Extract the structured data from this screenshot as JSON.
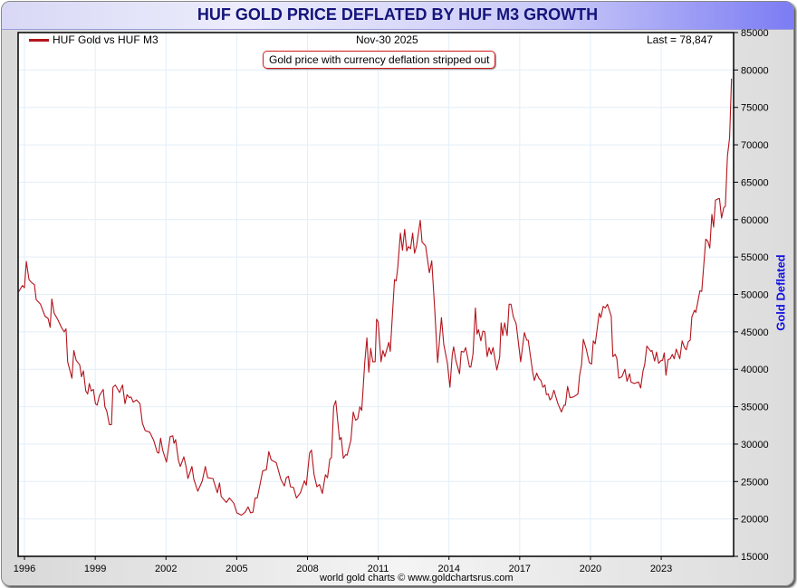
{
  "title": "HUF GOLD PRICE DEFLATED BY HUF M3 GROWTH",
  "legend": {
    "label": "HUF Gold vs HUF M3",
    "color": "#b4141c"
  },
  "date_label": "Nov-30  2025",
  "last_label": "Last = 78,847",
  "annotation": "Gold price with currency deflation stripped out",
  "footer": "world gold charts © www.goldchartsrus.com",
  "chart_data": {
    "type": "line",
    "title": "HUF GOLD PRICE DEFLATED BY HUF M3 GROWTH",
    "xlabel": "",
    "ylabel": "Gold Deflated",
    "xlim": [
      1995.73,
      2026.07
    ],
    "ylim": [
      15000,
      85000
    ],
    "x_ticks": [
      1996,
      1999,
      2002,
      2005,
      2008,
      2011,
      2014,
      2017,
      2020,
      2023
    ],
    "y_ticks": [
      15000,
      20000,
      25000,
      30000,
      35000,
      40000,
      45000,
      50000,
      55000,
      60000,
      65000,
      70000,
      75000,
      80000,
      85000
    ],
    "grid": true,
    "legend_position": "top-left",
    "last_value": 78847,
    "series": [
      {
        "name": "HUF Gold vs HUF M3",
        "color": "#b4141c",
        "points": [
          [
            1995.76,
            50400
          ],
          [
            1995.91,
            51200
          ],
          [
            1996.0,
            50900
          ],
          [
            1996.08,
            54400
          ],
          [
            1996.19,
            52000
          ],
          [
            1996.3,
            51600
          ],
          [
            1996.42,
            51300
          ],
          [
            1996.5,
            49300
          ],
          [
            1996.68,
            48700
          ],
          [
            1996.87,
            47100
          ],
          [
            1997.0,
            46800
          ],
          [
            1997.09,
            45600
          ],
          [
            1997.16,
            49400
          ],
          [
            1997.26,
            47500
          ],
          [
            1997.42,
            46600
          ],
          [
            1997.55,
            45700
          ],
          [
            1997.68,
            45000
          ],
          [
            1997.76,
            45400
          ],
          [
            1997.83,
            41000
          ],
          [
            1998.01,
            38800
          ],
          [
            1998.09,
            42500
          ],
          [
            1998.19,
            41200
          ],
          [
            1998.34,
            40600
          ],
          [
            1998.42,
            39000
          ],
          [
            1998.5,
            39800
          ],
          [
            1998.6,
            37100
          ],
          [
            1998.68,
            36700
          ],
          [
            1998.75,
            38100
          ],
          [
            1998.83,
            37100
          ],
          [
            1998.92,
            37300
          ],
          [
            1999.01,
            35400
          ],
          [
            1999.08,
            35200
          ],
          [
            1999.18,
            36500
          ],
          [
            1999.34,
            37300
          ],
          [
            1999.41,
            35000
          ],
          [
            1999.49,
            34400
          ],
          [
            1999.6,
            32600
          ],
          [
            1999.69,
            32600
          ],
          [
            1999.75,
            37600
          ],
          [
            1999.85,
            37900
          ],
          [
            2000.03,
            36900
          ],
          [
            2000.16,
            37900
          ],
          [
            2000.26,
            35400
          ],
          [
            2000.35,
            36600
          ],
          [
            2000.45,
            36200
          ],
          [
            2000.52,
            36300
          ],
          [
            2000.61,
            35600
          ],
          [
            2000.75,
            35900
          ],
          [
            2000.9,
            35400
          ],
          [
            2001.0,
            32800
          ],
          [
            2001.12,
            31800
          ],
          [
            2001.31,
            31600
          ],
          [
            2001.48,
            30500
          ],
          [
            2001.63,
            28900
          ],
          [
            2001.7,
            28800
          ],
          [
            2001.77,
            30800
          ],
          [
            2001.86,
            29200
          ],
          [
            2002.02,
            27600
          ],
          [
            2002.18,
            31000
          ],
          [
            2002.29,
            31100
          ],
          [
            2002.34,
            30100
          ],
          [
            2002.41,
            30600
          ],
          [
            2002.53,
            27800
          ],
          [
            2002.61,
            27000
          ],
          [
            2002.76,
            28300
          ],
          [
            2002.85,
            27000
          ],
          [
            2002.93,
            25400
          ],
          [
            2003.1,
            27000
          ],
          [
            2003.18,
            25300
          ],
          [
            2003.35,
            23700
          ],
          [
            2003.54,
            25100
          ],
          [
            2003.67,
            27000
          ],
          [
            2003.77,
            25500
          ],
          [
            2003.99,
            25400
          ],
          [
            2004.18,
            23500
          ],
          [
            2004.27,
            24800
          ],
          [
            2004.34,
            23000
          ],
          [
            2004.56,
            22200
          ],
          [
            2004.69,
            22800
          ],
          [
            2004.88,
            22100
          ],
          [
            2005.01,
            20800
          ],
          [
            2005.2,
            20500
          ],
          [
            2005.36,
            20900
          ],
          [
            2005.48,
            21600
          ],
          [
            2005.59,
            20800
          ],
          [
            2005.69,
            20900
          ],
          [
            2005.78,
            22800
          ],
          [
            2005.87,
            22800
          ],
          [
            2005.97,
            24300
          ],
          [
            2006.1,
            26400
          ],
          [
            2006.26,
            26600
          ],
          [
            2006.36,
            29000
          ],
          [
            2006.46,
            27900
          ],
          [
            2006.68,
            27500
          ],
          [
            2006.87,
            25300
          ],
          [
            2007.02,
            24400
          ],
          [
            2007.1,
            25500
          ],
          [
            2007.19,
            25700
          ],
          [
            2007.28,
            24300
          ],
          [
            2007.41,
            24200
          ],
          [
            2007.53,
            22800
          ],
          [
            2007.7,
            23500
          ],
          [
            2007.87,
            25100
          ],
          [
            2007.95,
            24500
          ],
          [
            2008.09,
            28800
          ],
          [
            2008.17,
            29200
          ],
          [
            2008.28,
            25900
          ],
          [
            2008.4,
            24300
          ],
          [
            2008.51,
            24600
          ],
          [
            2008.63,
            23400
          ],
          [
            2008.76,
            25900
          ],
          [
            2008.85,
            25500
          ],
          [
            2008.95,
            28000
          ],
          [
            2009.02,
            28200
          ],
          [
            2009.11,
            35000
          ],
          [
            2009.2,
            35800
          ],
          [
            2009.36,
            30600
          ],
          [
            2009.43,
            30900
          ],
          [
            2009.52,
            28100
          ],
          [
            2009.62,
            28600
          ],
          [
            2009.68,
            28500
          ],
          [
            2009.84,
            30500
          ],
          [
            2009.94,
            34300
          ],
          [
            2010.04,
            33200
          ],
          [
            2010.13,
            33400
          ],
          [
            2010.22,
            35000
          ],
          [
            2010.3,
            34500
          ],
          [
            2010.43,
            41000
          ],
          [
            2010.52,
            44200
          ],
          [
            2010.6,
            39600
          ],
          [
            2010.68,
            42800
          ],
          [
            2010.77,
            41000
          ],
          [
            2010.87,
            41000
          ],
          [
            2010.93,
            46700
          ],
          [
            2011.0,
            46300
          ],
          [
            2011.12,
            41000
          ],
          [
            2011.2,
            42500
          ],
          [
            2011.28,
            41700
          ],
          [
            2011.45,
            43600
          ],
          [
            2011.51,
            42400
          ],
          [
            2011.69,
            52000
          ],
          [
            2011.76,
            51800
          ],
          [
            2011.83,
            53600
          ],
          [
            2011.94,
            58200
          ],
          [
            2012.03,
            55900
          ],
          [
            2012.12,
            58700
          ],
          [
            2012.21,
            55800
          ],
          [
            2012.28,
            56400
          ],
          [
            2012.37,
            56100
          ],
          [
            2012.46,
            58200
          ],
          [
            2012.54,
            55500
          ],
          [
            2012.63,
            56500
          ],
          [
            2012.78,
            59900
          ],
          [
            2012.86,
            57000
          ],
          [
            2013.01,
            56500
          ],
          [
            2013.17,
            52900
          ],
          [
            2013.27,
            54500
          ],
          [
            2013.4,
            47800
          ],
          [
            2013.52,
            40900
          ],
          [
            2013.68,
            46900
          ],
          [
            2013.78,
            43300
          ],
          [
            2013.93,
            40900
          ],
          [
            2014.04,
            37600
          ],
          [
            2014.14,
            42000
          ],
          [
            2014.2,
            43000
          ],
          [
            2014.29,
            41200
          ],
          [
            2014.45,
            39400
          ],
          [
            2014.52,
            42400
          ],
          [
            2014.63,
            42300
          ],
          [
            2014.71,
            42900
          ],
          [
            2014.87,
            40300
          ],
          [
            2014.93,
            40300
          ],
          [
            2015.02,
            42100
          ],
          [
            2015.12,
            48200
          ],
          [
            2015.19,
            44700
          ],
          [
            2015.25,
            45300
          ],
          [
            2015.35,
            43800
          ],
          [
            2015.44,
            45100
          ],
          [
            2015.52,
            45000
          ],
          [
            2015.62,
            41700
          ],
          [
            2015.7,
            42900
          ],
          [
            2015.79,
            42000
          ],
          [
            2015.87,
            42900
          ],
          [
            2016.03,
            39900
          ],
          [
            2016.15,
            41600
          ],
          [
            2016.21,
            46200
          ],
          [
            2016.28,
            44500
          ],
          [
            2016.36,
            46200
          ],
          [
            2016.47,
            44500
          ],
          [
            2016.55,
            48700
          ],
          [
            2016.63,
            48700
          ],
          [
            2016.73,
            47000
          ],
          [
            2016.85,
            46100
          ],
          [
            2017.04,
            41000
          ],
          [
            2017.2,
            44900
          ],
          [
            2017.3,
            43900
          ],
          [
            2017.36,
            43900
          ],
          [
            2017.55,
            39600
          ],
          [
            2017.62,
            38500
          ],
          [
            2017.72,
            39500
          ],
          [
            2017.81,
            38800
          ],
          [
            2017.9,
            38500
          ],
          [
            2017.98,
            37600
          ],
          [
            2018.07,
            37900
          ],
          [
            2018.13,
            36600
          ],
          [
            2018.21,
            36700
          ],
          [
            2018.28,
            35900
          ],
          [
            2018.36,
            36200
          ],
          [
            2018.45,
            37200
          ],
          [
            2018.62,
            35400
          ],
          [
            2018.77,
            34300
          ],
          [
            2018.88,
            35200
          ],
          [
            2018.94,
            35200
          ],
          [
            2019.03,
            37700
          ],
          [
            2019.13,
            36200
          ],
          [
            2019.28,
            36300
          ],
          [
            2019.47,
            36700
          ],
          [
            2019.54,
            39200
          ],
          [
            2019.62,
            40600
          ],
          [
            2019.7,
            44000
          ],
          [
            2019.82,
            42700
          ],
          [
            2019.95,
            40900
          ],
          [
            2020.05,
            40700
          ],
          [
            2020.12,
            43800
          ],
          [
            2020.2,
            43400
          ],
          [
            2020.37,
            47500
          ],
          [
            2020.44,
            46900
          ],
          [
            2020.54,
            48400
          ],
          [
            2020.63,
            48200
          ],
          [
            2020.72,
            48700
          ],
          [
            2020.88,
            47100
          ],
          [
            2020.95,
            41700
          ],
          [
            2021.05,
            42000
          ],
          [
            2021.12,
            41400
          ],
          [
            2021.2,
            38800
          ],
          [
            2021.33,
            39000
          ],
          [
            2021.46,
            40000
          ],
          [
            2021.55,
            38400
          ],
          [
            2021.66,
            39400
          ],
          [
            2021.72,
            38300
          ],
          [
            2021.85,
            38100
          ],
          [
            2022.04,
            38300
          ],
          [
            2022.13,
            37500
          ],
          [
            2022.23,
            39800
          ],
          [
            2022.3,
            40600
          ],
          [
            2022.39,
            43100
          ],
          [
            2022.56,
            42400
          ],
          [
            2022.61,
            42500
          ],
          [
            2022.72,
            41100
          ],
          [
            2022.8,
            42300
          ],
          [
            2022.89,
            40800
          ],
          [
            2023.0,
            41200
          ],
          [
            2023.06,
            41200
          ],
          [
            2023.13,
            42200
          ],
          [
            2023.2,
            39200
          ],
          [
            2023.29,
            41300
          ],
          [
            2023.38,
            41400
          ],
          [
            2023.47,
            42000
          ],
          [
            2023.55,
            41400
          ],
          [
            2023.64,
            42700
          ],
          [
            2023.79,
            41400
          ],
          [
            2023.89,
            43800
          ],
          [
            2023.99,
            42900
          ],
          [
            2024.06,
            42600
          ],
          [
            2024.15,
            43700
          ],
          [
            2024.23,
            43900
          ],
          [
            2024.3,
            47000
          ],
          [
            2024.41,
            47900
          ],
          [
            2024.47,
            47600
          ],
          [
            2024.64,
            50500
          ],
          [
            2024.72,
            50400
          ],
          [
            2024.89,
            57400
          ],
          [
            2024.98,
            57100
          ],
          [
            2025.06,
            56200
          ],
          [
            2025.15,
            60700
          ],
          [
            2025.22,
            59000
          ],
          [
            2025.3,
            62600
          ],
          [
            2025.43,
            62800
          ],
          [
            2025.47,
            62800
          ],
          [
            2025.56,
            60200
          ],
          [
            2025.65,
            61600
          ],
          [
            2025.72,
            61800
          ],
          [
            2025.81,
            68500
          ],
          [
            2025.9,
            71000
          ],
          [
            2025.98,
            78847
          ]
        ]
      }
    ]
  }
}
